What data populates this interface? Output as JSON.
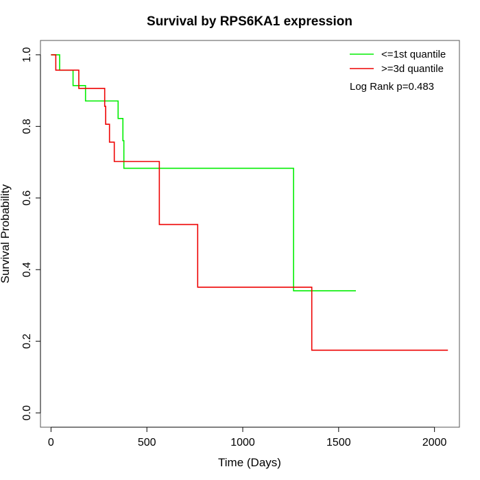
{
  "chart_data": {
    "type": "line",
    "step": true,
    "title": "Survival by RPS6KA1 expression",
    "xlabel": "Time (Days)",
    "ylabel": "Survival Probability",
    "xlim": [
      -55,
      2130
    ],
    "ylim": [
      -0.04,
      1.04
    ],
    "xticks": [
      0,
      500,
      1000,
      1500,
      2000
    ],
    "yticks": [
      0.0,
      0.2,
      0.4,
      0.6,
      0.8,
      1.0
    ],
    "xtick_labels": [
      "0",
      "500",
      "1000",
      "1500",
      "2000"
    ],
    "ytick_labels": [
      "0.0",
      "0.2",
      "0.4",
      "0.6",
      "0.8",
      "1.0"
    ],
    "legend_position": "top-right",
    "annotation": "Log Rank p=0.483",
    "series": [
      {
        "name": "<=1st quantile",
        "color": "#00ee00",
        "x": [
          0,
          45,
          115,
          180,
          350,
          375,
          380,
          385,
          1265,
          1590
        ],
        "y": [
          1.0,
          0.957,
          0.914,
          0.871,
          0.822,
          0.76,
          0.683,
          0.683,
          0.341,
          0.341
        ]
      },
      {
        "name": ">=3d quantile",
        "color": "#ee0000",
        "x": [
          0,
          25,
          145,
          280,
          285,
          300,
          305,
          325,
          330,
          565,
          765,
          1360,
          2070
        ],
        "y": [
          1.0,
          0.957,
          0.906,
          0.856,
          0.806,
          0.806,
          0.756,
          0.756,
          0.702,
          0.526,
          0.351,
          0.175,
          0.175
        ]
      }
    ]
  }
}
